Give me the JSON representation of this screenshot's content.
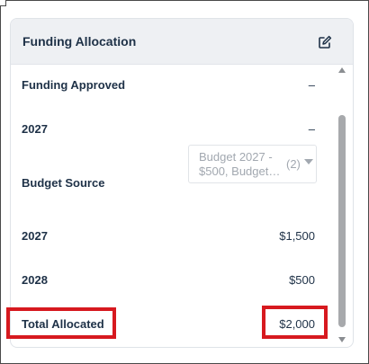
{
  "card": {
    "title": "Funding Allocation",
    "edit_icon": "pencil-square-icon"
  },
  "rows": [
    {
      "label": "Funding Approved",
      "value": "–"
    },
    {
      "label": "2027",
      "value": "–"
    },
    {
      "label": "Budget Source",
      "select": {
        "line1": "Budget 2027 -",
        "line2": "$500, Budget…",
        "count": "(2)",
        "caret_icon": "caret-down-icon"
      }
    },
    {
      "label": "2027",
      "value": "$1,500"
    },
    {
      "label": "2028",
      "value": "$500"
    },
    {
      "label": "Total Allocated",
      "value": "$2,000"
    }
  ],
  "colors": {
    "header_bg": "#eef0f3",
    "text": "#1e3147",
    "placeholder": "#a2a8b0",
    "highlight": "#d7191f",
    "scroll_thumb": "#a7a9ac"
  }
}
